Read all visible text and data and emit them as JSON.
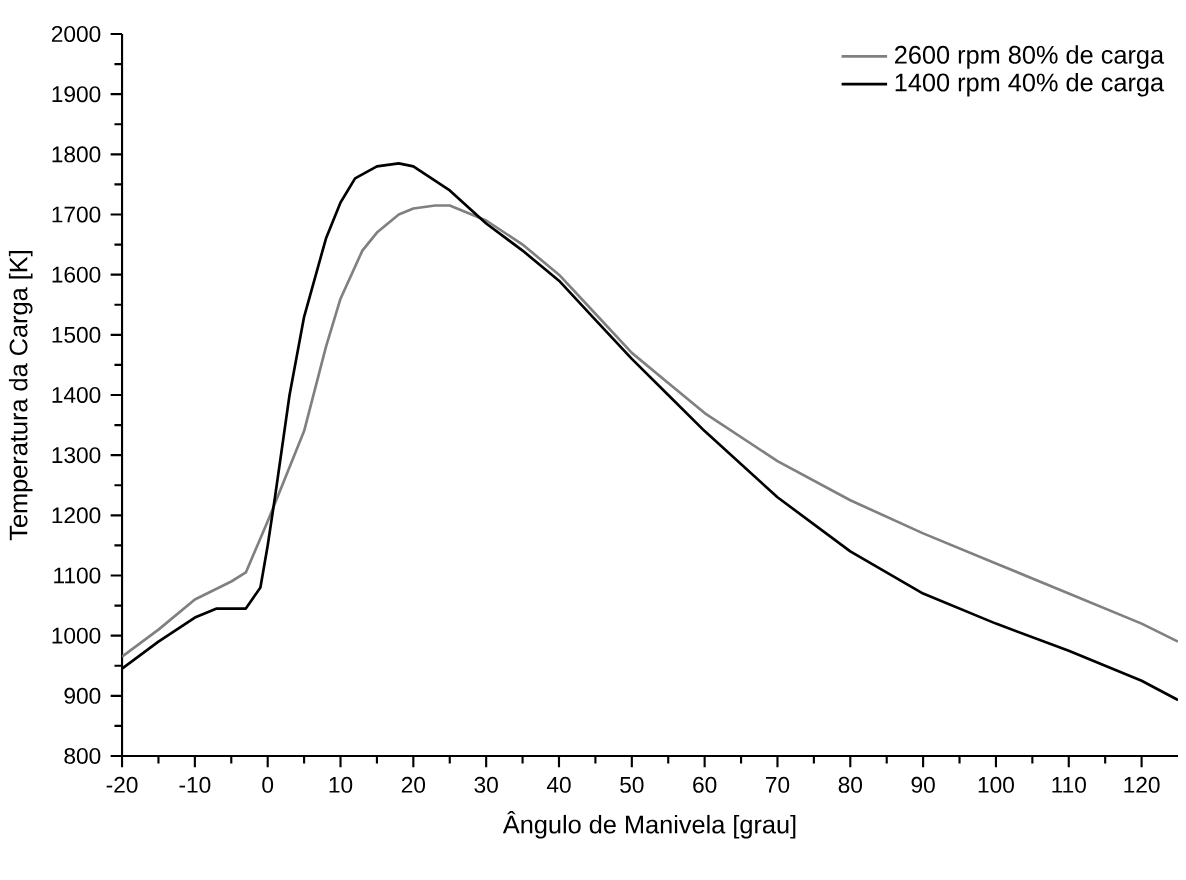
{
  "chart_data": {
    "type": "line",
    "xlabel": "Ângulo de Manivela [grau]",
    "ylabel": "Temperatura da Carga [K]",
    "xlim": [
      -20,
      125
    ],
    "ylim": [
      800,
      2000
    ],
    "xticks": [
      -20,
      -10,
      0,
      10,
      20,
      30,
      40,
      50,
      60,
      70,
      80,
      90,
      100,
      110,
      120
    ],
    "yticks": [
      800,
      900,
      1000,
      1100,
      1200,
      1300,
      1400,
      1500,
      1600,
      1700,
      1800,
      1900,
      2000
    ],
    "grid": false,
    "legend": "top right",
    "marker": "none",
    "line_style": "solid",
    "series": [
      {
        "name": "2600 rpm 80% de carga",
        "color": "#808080",
        "x": [
          -20,
          -15,
          -10,
          -5,
          -3,
          0,
          2,
          5,
          8,
          10,
          13,
          15,
          18,
          20,
          23,
          25,
          30,
          35,
          40,
          45,
          50,
          55,
          60,
          70,
          80,
          90,
          100,
          110,
          120,
          125
        ],
        "values": [
          965,
          1010,
          1060,
          1090,
          1105,
          1190,
          1250,
          1340,
          1480,
          1560,
          1640,
          1670,
          1700,
          1710,
          1715,
          1715,
          1690,
          1650,
          1600,
          1535,
          1470,
          1420,
          1370,
          1290,
          1225,
          1170,
          1120,
          1070,
          1020,
          990
        ]
      },
      {
        "name": "1400 rpm 40% de carga",
        "color": "#000000",
        "x": [
          -20,
          -15,
          -10,
          -7,
          -3,
          -1,
          0,
          1,
          3,
          5,
          8,
          10,
          12,
          15,
          18,
          20,
          25,
          30,
          35,
          40,
          45,
          50,
          55,
          60,
          70,
          80,
          90,
          100,
          110,
          120,
          125
        ],
        "values": [
          945,
          990,
          1030,
          1045,
          1045,
          1080,
          1150,
          1230,
          1400,
          1530,
          1660,
          1720,
          1760,
          1780,
          1785,
          1780,
          1740,
          1685,
          1640,
          1590,
          1525,
          1460,
          1400,
          1340,
          1230,
          1140,
          1070,
          1020,
          975,
          925,
          893
        ]
      }
    ]
  }
}
